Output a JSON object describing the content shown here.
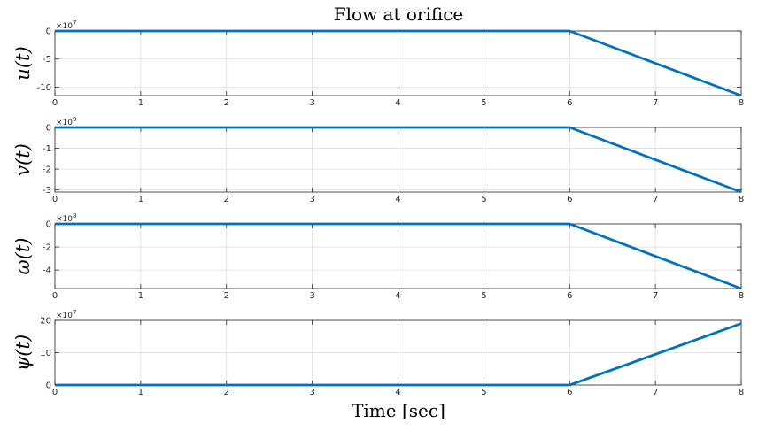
{
  "chart_data": {
    "type": "line",
    "title": "Flow at orifice",
    "xlabel": "Time [sec]",
    "xlim": [
      0,
      8
    ],
    "x_ticks": [
      0,
      1,
      2,
      3,
      4,
      5,
      6,
      7,
      8
    ],
    "grid": true,
    "color": "#0072BD",
    "panels": [
      {
        "ylabel": "u(t)",
        "exponent_label": "×10",
        "exponent_power": "7",
        "ylim": [
          -11.5,
          0
        ],
        "y_ticks": [
          0,
          -5,
          -10
        ],
        "series": [
          {
            "x": [
              0,
              6,
              8
            ],
            "y": [
              0,
              0,
              -11.5
            ]
          }
        ]
      },
      {
        "ylabel": "v(t)",
        "exponent_label": "×10",
        "exponent_power": "9",
        "ylim": [
          -3.1,
          0
        ],
        "y_ticks": [
          0,
          -1,
          -2,
          -3
        ],
        "series": [
          {
            "x": [
              0,
              6,
              8
            ],
            "y": [
              0,
              0,
              -3.1
            ]
          }
        ]
      },
      {
        "ylabel": "ω(t)",
        "exponent_label": "×10",
        "exponent_power": "8",
        "ylim": [
          -5.6,
          0
        ],
        "y_ticks": [
          0,
          -2,
          -4
        ],
        "series": [
          {
            "x": [
              0,
              6,
              8
            ],
            "y": [
              0,
              0,
              -5.6
            ]
          }
        ]
      },
      {
        "ylabel": "ψ(t)",
        "exponent_label": "×10",
        "exponent_power": "7",
        "ylim": [
          0,
          20
        ],
        "y_ticks": [
          0,
          10,
          20
        ],
        "series": [
          {
            "x": [
              0,
              6,
              8
            ],
            "y": [
              0,
              0,
              19
            ]
          }
        ]
      }
    ]
  }
}
